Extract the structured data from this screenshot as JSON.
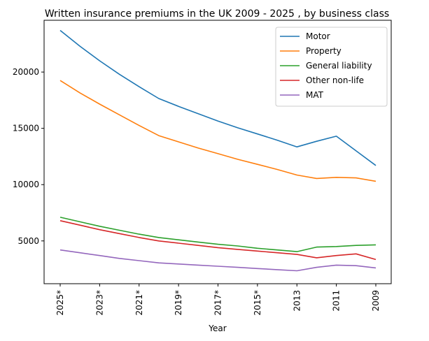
{
  "chart_data": {
    "type": "line",
    "title": "Written insurance premiums in the UK 2009 - 2025 , by business class",
    "xlabel": "Year",
    "ylabel": "",
    "x": [
      "2025*",
      "2024*",
      "2023*",
      "2022*",
      "2021*",
      "2020*",
      "2019*",
      "2018*",
      "2017*",
      "2016*",
      "2015*",
      "2014",
      "2013",
      "2012",
      "2011",
      "2010",
      "2009"
    ],
    "x_tick_labels": [
      "2025*",
      "2023*",
      "2021*",
      "2019*",
      "2017*",
      "2015*",
      "2013",
      "2011",
      "2009"
    ],
    "y_ticks": [
      5000,
      10000,
      15000,
      20000
    ],
    "ylim": [
      1200,
      24600
    ],
    "legend_position": "top-right",
    "grid": false,
    "series": [
      {
        "name": "Motor",
        "color": "#1f77b4",
        "values": [
          23700,
          22300,
          21000,
          19800,
          18700,
          17650,
          16950,
          16300,
          15650,
          15050,
          14500,
          13950,
          13350,
          13850,
          14300,
          13000,
          11700
        ]
      },
      {
        "name": "Property",
        "color": "#ff7f0e",
        "values": [
          19250,
          18150,
          17150,
          16200,
          15250,
          14350,
          13800,
          13250,
          12750,
          12250,
          11800,
          11350,
          10850,
          10550,
          10650,
          10600,
          10300
        ]
      },
      {
        "name": "General liability",
        "color": "#2ca02c",
        "values": [
          7100,
          6700,
          6300,
          5950,
          5600,
          5300,
          5100,
          4900,
          4700,
          4550,
          4350,
          4200,
          4050,
          4450,
          4500,
          4600,
          4650
        ]
      },
      {
        "name": "Other non-life",
        "color": "#d62728",
        "values": [
          6800,
          6400,
          6000,
          5650,
          5300,
          5000,
          4800,
          4600,
          4400,
          4250,
          4100,
          3950,
          3800,
          3500,
          3700,
          3850,
          3350
        ]
      },
      {
        "name": "MAT",
        "color": "#9467bd",
        "values": [
          4200,
          3950,
          3700,
          3450,
          3250,
          3050,
          2950,
          2850,
          2750,
          2650,
          2550,
          2450,
          2350,
          2650,
          2850,
          2800,
          2600
        ]
      }
    ]
  }
}
